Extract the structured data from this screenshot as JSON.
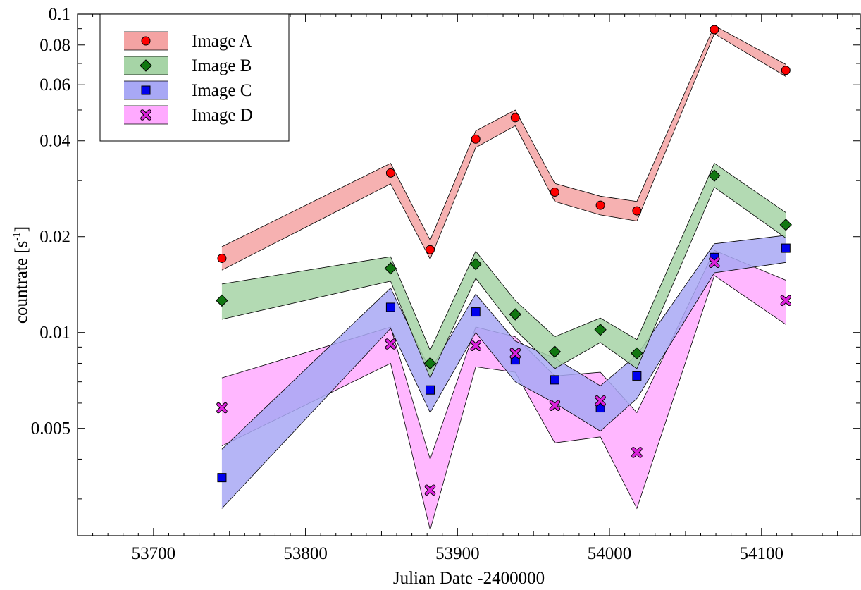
{
  "chart_data": {
    "type": "line",
    "title": "",
    "xlabel": "Julian Date -2400000",
    "ylabel_main": "countrate [s",
    "ylabel_sup": "-1",
    "ylabel_close": "]",
    "xlim": [
      53650,
      54165
    ],
    "ylim": [
      0.0023,
      0.1
    ],
    "yscale": "log",
    "xticks": [
      53700,
      53800,
      53900,
      54000,
      54100
    ],
    "xtick_labels": [
      "53700",
      "53800",
      "53900",
      "54000",
      "54100"
    ],
    "yticks": [
      0.005,
      0.01,
      0.02,
      0.04,
      0.06,
      0.08,
      0.1
    ],
    "ytick_labels": [
      "0.005",
      "0.01",
      "0.02",
      "0.04",
      "0.06",
      "0.08",
      "0.1"
    ],
    "grid": false,
    "legend_position": "top-left",
    "series": [
      {
        "name": "Image A",
        "marker": "circle",
        "color": "#ff0000",
        "band_color": "#f4a3a3",
        "x": [
          53745,
          53856,
          53882,
          53912,
          53938,
          53964,
          53994,
          54018,
          54069,
          54116
        ],
        "y": [
          0.0171,
          0.0317,
          0.0182,
          0.0405,
          0.0473,
          0.0276,
          0.0251,
          0.0241,
          0.0894,
          0.0666
        ],
        "upper": [
          0.0186,
          0.034,
          0.0195,
          0.043,
          0.05,
          0.0294,
          0.0268,
          0.0258,
          0.092,
          0.0695
        ],
        "lower": [
          0.0157,
          0.0293,
          0.017,
          0.0381,
          0.0446,
          0.0258,
          0.0234,
          0.0224,
          0.0868,
          0.0637
        ]
      },
      {
        "name": "Image B",
        "marker": "diamond",
        "color": "#117711",
        "band_color": "#a6d4a6",
        "x": [
          53745,
          53856,
          53882,
          53912,
          53938,
          53964,
          53994,
          54018,
          54069,
          54116
        ],
        "y": [
          0.0126,
          0.0159,
          0.008,
          0.0164,
          0.0114,
          0.0087,
          0.0102,
          0.0086,
          0.0311,
          0.0218
        ],
        "upper": [
          0.0142,
          0.0173,
          0.0088,
          0.018,
          0.0126,
          0.0097,
          0.0111,
          0.0095,
          0.034,
          0.0238
        ],
        "lower": [
          0.011,
          0.0145,
          0.0072,
          0.0148,
          0.0102,
          0.0077,
          0.0093,
          0.0077,
          0.0286,
          0.0198
        ]
      },
      {
        "name": "Image C",
        "marker": "square",
        "color": "#0000ee",
        "band_color": "#a8a8f5",
        "x": [
          53745,
          53856,
          53882,
          53912,
          53938,
          53964,
          53994,
          54018,
          54069,
          54116
        ],
        "y": [
          0.0035,
          0.012,
          0.0066,
          0.0116,
          0.0082,
          0.0071,
          0.0058,
          0.0073,
          0.0172,
          0.0184
        ],
        "upper": [
          0.0043,
          0.0138,
          0.0076,
          0.0132,
          0.0094,
          0.0083,
          0.0068,
          0.0085,
          0.019,
          0.0202
        ],
        "lower": [
          0.0028,
          0.0103,
          0.0056,
          0.01,
          0.007,
          0.006,
          0.0049,
          0.0062,
          0.0154,
          0.0166
        ]
      },
      {
        "name": "Image D",
        "marker": "cross",
        "color": "#dd22dd",
        "band_color": "#ffaaff",
        "x": [
          53745,
          53856,
          53882,
          53912,
          53938,
          53964,
          53994,
          54018,
          54069,
          54116
        ],
        "y": [
          0.0058,
          0.0092,
          0.0032,
          0.0091,
          0.0086,
          0.0059,
          0.0061,
          0.0042,
          0.0166,
          0.0126
        ],
        "upper": [
          0.0072,
          0.0104,
          0.004,
          0.0104,
          0.0097,
          0.0073,
          0.0075,
          0.0056,
          0.0181,
          0.0146
        ],
        "lower": [
          0.0044,
          0.008,
          0.0024,
          0.0078,
          0.0075,
          0.0045,
          0.0047,
          0.0028,
          0.0151,
          0.0106
        ]
      }
    ]
  }
}
